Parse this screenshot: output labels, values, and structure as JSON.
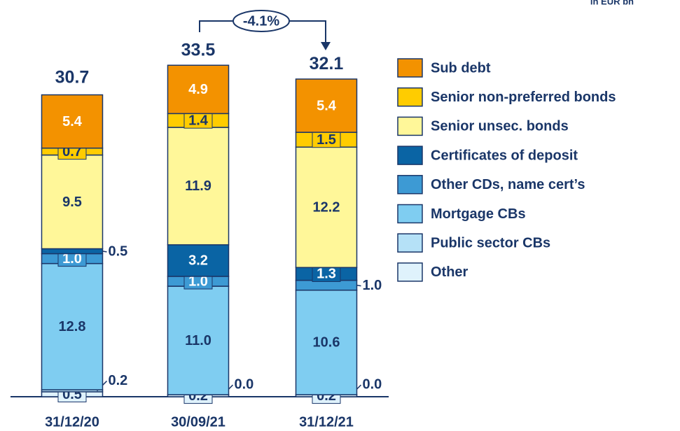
{
  "chart_data": {
    "type": "bar",
    "stacked": true,
    "unit_note": "in EUR bn",
    "categories": [
      "31/12/20",
      "30/09/21",
      "31/12/21"
    ],
    "totals": [
      30.7,
      33.5,
      32.1
    ],
    "annotation": "-4.1%",
    "series": [
      {
        "name": "Other",
        "color": "#dff2fc",
        "values": [
          0.5,
          0.2,
          0.2
        ],
        "value_labels": [
          "0.5",
          "0.2",
          "0.2"
        ]
      },
      {
        "name": "Public sector CBs",
        "color": "#b5e1f7",
        "values": [
          0.2,
          0.0,
          0.0
        ],
        "value_labels": [
          "0.2",
          "0.0",
          "0.0"
        ]
      },
      {
        "name": "Mortgage CBs",
        "color": "#7fcdf1",
        "values": [
          12.8,
          11.0,
          10.6
        ],
        "value_labels": [
          "12.8",
          "11.0",
          "10.6"
        ]
      },
      {
        "name": "Other CDs, name cert’s",
        "color": "#3d9ad4",
        "values": [
          1.0,
          1.0,
          1.0
        ],
        "value_labels": [
          "1.0",
          "1.0",
          "1.0"
        ]
      },
      {
        "name": "Certificates of deposit",
        "color": "#0a64a4",
        "values": [
          0.5,
          3.2,
          1.3
        ],
        "value_labels": [
          "0.5",
          "3.2",
          "1.3"
        ]
      },
      {
        "name": "Senior unsec. bonds",
        "color": "#fff799",
        "values": [
          9.5,
          11.9,
          12.2
        ],
        "value_labels": [
          "9.5",
          "11.9",
          "12.2"
        ]
      },
      {
        "name": "Senior non-preferred bonds",
        "color": "#ffcc00",
        "values": [
          0.7,
          1.4,
          1.5
        ],
        "value_labels": [
          "0.7",
          "1.4",
          "1.5"
        ]
      },
      {
        "name": "Sub debt",
        "color": "#f39200",
        "values": [
          5.4,
          4.9,
          5.4
        ],
        "value_labels": [
          "5.4",
          "4.9",
          "5.4"
        ]
      }
    ]
  }
}
